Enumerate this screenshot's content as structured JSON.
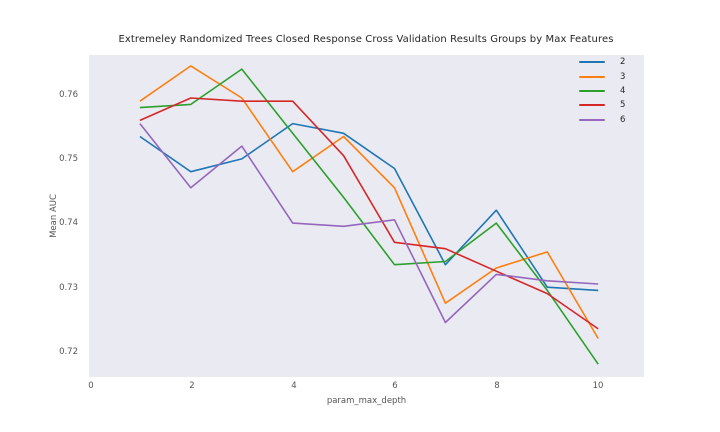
{
  "chart_data": {
    "type": "line",
    "title": "Extremeley Randomized Trees Closed Response Cross Validation Results Groups by Max Features",
    "xlabel": "param_max_depth",
    "ylabel": "Mean AUC",
    "x": [
      1,
      2,
      3,
      4,
      5,
      6,
      7,
      8,
      9,
      10
    ],
    "series": [
      {
        "name": "2",
        "color": "#1f77b4",
        "values": [
          0.7535,
          0.748,
          0.75,
          0.7555,
          0.754,
          0.7485,
          0.7335,
          0.742,
          0.73,
          0.7295
        ]
      },
      {
        "name": "3",
        "color": "#ff7f0e",
        "values": [
          0.759,
          0.7645,
          0.7595,
          0.748,
          0.7535,
          0.7455,
          0.7275,
          0.733,
          0.7355,
          0.722
        ]
      },
      {
        "name": "4",
        "color": "#2ca02c",
        "values": [
          0.758,
          0.7585,
          0.764,
          0.754,
          0.744,
          0.7335,
          0.734,
          0.74,
          0.7295,
          0.718
        ]
      },
      {
        "name": "5",
        "color": "#d62728",
        "values": [
          0.756,
          0.7595,
          0.759,
          0.759,
          0.7505,
          0.737,
          0.736,
          0.7325,
          0.729,
          0.7235
        ]
      },
      {
        "name": "6",
        "color": "#9467bd",
        "values": [
          0.7555,
          0.7455,
          0.752,
          0.74,
          0.7395,
          0.7405,
          0.7245,
          0.732,
          0.731,
          0.7305
        ]
      }
    ],
    "x_ticks": [
      0,
      2,
      4,
      6,
      8,
      10
    ],
    "x_tick_labels": [
      "0",
      "2",
      "4",
      "6",
      "8",
      "10"
    ],
    "y_ticks": [
      0.72,
      0.73,
      0.74,
      0.75,
      0.76
    ],
    "y_tick_labels": [
      "0.72",
      "0.73",
      "0.74",
      "0.75",
      "0.76"
    ],
    "xlim": [
      0,
      10.9
    ],
    "ylim": [
      0.716,
      0.7662
    ],
    "legend_position": "upper right",
    "legend_labels": [
      "2",
      "3",
      "4",
      "5",
      "6"
    ],
    "grid": false,
    "colors": {
      "plot_background": "#eaeaf2",
      "figure_background": "#ffffff",
      "tick_text": "#555555",
      "title_text": "#262626"
    }
  }
}
